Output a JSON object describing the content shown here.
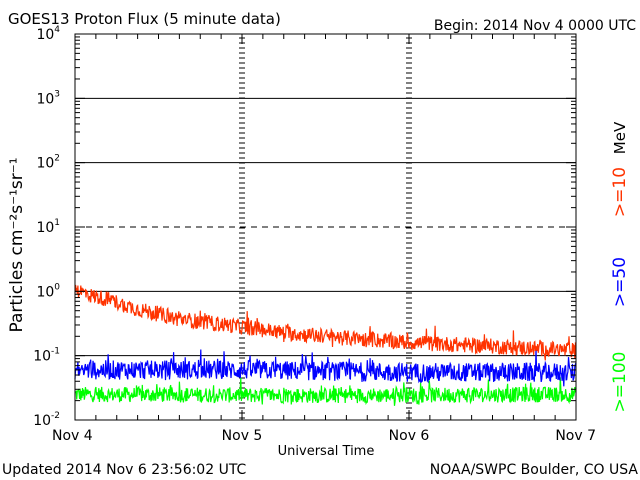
{
  "header": {
    "title": "GOES13 Proton Flux (5 minute data)",
    "begin": "Begin: 2014 Nov 4 0000 UTC"
  },
  "footer": {
    "updated": "Updated 2014 Nov  6 23:56:02 UTC",
    "credit": "NOAA/SWPC Boulder, CO USA"
  },
  "colors": {
    "ge10": "#ff3300",
    "ge50": "#0000ff",
    "ge100": "#00ff00",
    "grid": "#000000"
  },
  "chart_data": {
    "type": "line",
    "title": "GOES13 Proton Flux (5 minute data)",
    "xlabel": "Universal Time",
    "ylabel": "Particles cm⁻²s⁻¹sr⁻¹",
    "yscale": "log",
    "ylim": [
      0.01,
      10000
    ],
    "x_ticks": [
      "Nov 4",
      "Nov 5",
      "Nov 6",
      "Nov 7"
    ],
    "xlim_days": [
      0,
      3
    ],
    "y_ticks": [
      {
        "base": "10",
        "exp": "-2"
      },
      {
        "base": "10",
        "exp": "-1"
      },
      {
        "base": "10",
        "exp": "0"
      },
      {
        "base": "10",
        "exp": "1"
      },
      {
        "base": "10",
        "exp": "2"
      },
      {
        "base": "10",
        "exp": "3"
      },
      {
        "base": "10",
        "exp": "4"
      }
    ],
    "unit_label": "MeV",
    "series": [
      {
        "name": ">=10",
        "color": "#ff3300",
        "anchors": [
          [
            0.0,
            1.1
          ],
          [
            0.1,
            0.85
          ],
          [
            0.2,
            0.75
          ],
          [
            0.35,
            0.55
          ],
          [
            0.6,
            0.38
          ],
          [
            1.0,
            0.28
          ],
          [
            1.3,
            0.22
          ],
          [
            1.6,
            0.19
          ],
          [
            2.0,
            0.16
          ],
          [
            2.5,
            0.14
          ],
          [
            3.0,
            0.12
          ]
        ],
        "noise": 0.12
      },
      {
        "name": ">=50",
        "color": "#0000ff",
        "anchors": [
          [
            0.0,
            0.06
          ],
          [
            1.0,
            0.06
          ],
          [
            2.0,
            0.055
          ],
          [
            3.0,
            0.055
          ]
        ],
        "noise": 0.15
      },
      {
        "name": ">=100",
        "color": "#00ff00",
        "anchors": [
          [
            0.0,
            0.025
          ],
          [
            1.5,
            0.024
          ],
          [
            3.0,
            0.025
          ]
        ],
        "noise": 0.12
      }
    ]
  }
}
